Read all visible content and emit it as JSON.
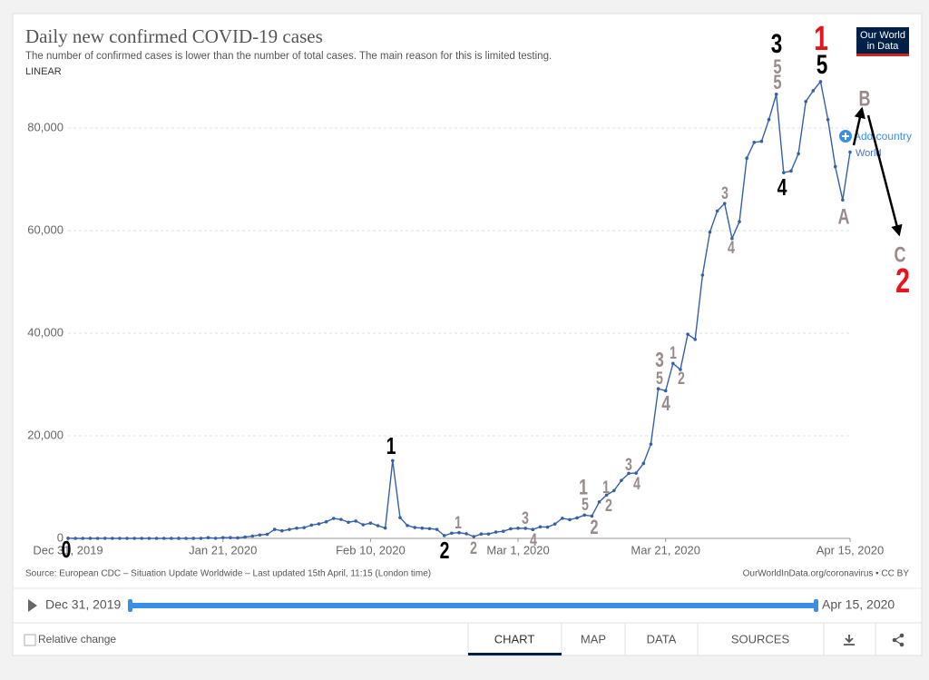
{
  "chart_data": {
    "type": "line",
    "title": "Daily new confirmed COVID-19 cases",
    "subtitle": "The number of confirmed cases is lower than the number of total cases. The main reason for this is limited testing.",
    "scale_label": "LINEAR",
    "log_scale": false,
    "grid": true,
    "xlim": [
      "2019-12-31",
      "2020-04-15"
    ],
    "xticks": [
      {
        "value": "2019-12-31",
        "label": "Dec 31, 2019"
      },
      {
        "value": "2020-01-21",
        "label": "Jan 21, 2020"
      },
      {
        "value": "2020-02-10",
        "label": "Feb 10, 2020"
      },
      {
        "value": "2020-03-01",
        "label": "Mar 1, 2020"
      },
      {
        "value": "2020-03-21",
        "label": "Mar 21, 2020"
      },
      {
        "value": "2020-04-15",
        "label": "Apr 15, 2020"
      }
    ],
    "ylim": [
      0,
      90000
    ],
    "yticks": [
      0,
      {
        "value": 20000,
        "label": "20,000"
      },
      {
        "value": 40000,
        "label": "40,000"
      },
      {
        "value": 60000,
        "label": "60,000"
      },
      {
        "value": 80000,
        "label": "80,000"
      }
    ],
    "x": [
      "2019-12-31",
      "2020-01-01",
      "2020-01-02",
      "2020-01-03",
      "2020-01-04",
      "2020-01-05",
      "2020-01-06",
      "2020-01-07",
      "2020-01-08",
      "2020-01-09",
      "2020-01-10",
      "2020-01-11",
      "2020-01-12",
      "2020-01-13",
      "2020-01-14",
      "2020-01-15",
      "2020-01-16",
      "2020-01-17",
      "2020-01-18",
      "2020-01-19",
      "2020-01-20",
      "2020-01-21",
      "2020-01-22",
      "2020-01-23",
      "2020-01-24",
      "2020-01-25",
      "2020-01-26",
      "2020-01-27",
      "2020-01-28",
      "2020-01-29",
      "2020-01-30",
      "2020-01-31",
      "2020-02-01",
      "2020-02-02",
      "2020-02-03",
      "2020-02-04",
      "2020-02-05",
      "2020-02-06",
      "2020-02-07",
      "2020-02-08",
      "2020-02-09",
      "2020-02-10",
      "2020-02-11",
      "2020-02-12",
      "2020-02-13",
      "2020-02-14",
      "2020-02-15",
      "2020-02-16",
      "2020-02-17",
      "2020-02-18",
      "2020-02-19",
      "2020-02-20",
      "2020-02-21",
      "2020-02-22",
      "2020-02-23",
      "2020-02-24",
      "2020-02-25",
      "2020-02-26",
      "2020-02-27",
      "2020-02-28",
      "2020-02-29",
      "2020-03-01",
      "2020-03-02",
      "2020-03-03",
      "2020-03-04",
      "2020-03-05",
      "2020-03-06",
      "2020-03-07",
      "2020-03-08",
      "2020-03-09",
      "2020-03-10",
      "2020-03-11",
      "2020-03-12",
      "2020-03-13",
      "2020-03-14",
      "2020-03-15",
      "2020-03-16",
      "2020-03-17",
      "2020-03-18",
      "2020-03-19",
      "2020-03-20",
      "2020-03-21",
      "2020-03-22",
      "2020-03-23",
      "2020-03-24",
      "2020-03-25",
      "2020-03-26",
      "2020-03-27",
      "2020-03-28",
      "2020-03-29",
      "2020-03-30",
      "2020-03-31",
      "2020-04-01",
      "2020-04-02",
      "2020-04-03",
      "2020-04-04",
      "2020-04-05",
      "2020-04-06",
      "2020-04-07",
      "2020-04-08",
      "2020-04-09",
      "2020-04-10",
      "2020-04-11",
      "2020-04-12",
      "2020-04-13",
      "2020-04-14",
      "2020-04-15"
    ],
    "series": [
      {
        "name": "World",
        "color": "#3360a9",
        "values": [
          27,
          0,
          0,
          17,
          0,
          15,
          0,
          0,
          0,
          0,
          1,
          0,
          0,
          1,
          0,
          4,
          0,
          4,
          17,
          136,
          19,
          151,
          140,
          97,
          259,
          441,
          665,
          787,
          1753,
          1466,
          1740,
          1981,
          2099,
          2589,
          2825,
          3235,
          3884,
          3694,
          3143,
          3385,
          2652,
          2984,
          2473,
          2022,
          15151,
          4050,
          2502,
          2121,
          1995,
          1904,
          1745,
          535,
          1009,
          1115,
          904,
          346,
          845,
          862,
          1225,
          1382,
          1861,
          1985,
          1952,
          1734,
          2246,
          2192,
          2806,
          3918,
          3646,
          3997,
          4551,
          4352,
          7094,
          8453,
          9306,
          11297,
          12660,
          12728,
          14606,
          18374,
          29167,
          28771,
          34105,
          32913,
          39796,
          38788,
          51317,
          59702,
          63826,
          65277,
          58453,
          61734,
          74121,
          77195,
          77400,
          81648,
          86578,
          71303,
          71622,
          74987,
          85178,
          87269,
          89047,
          81637,
          72458,
          65963,
          75308
        ]
      }
    ],
    "annotations": [
      {
        "text": "0",
        "color": "#000000"
      },
      {
        "text": "1",
        "color": "#000000"
      },
      {
        "text": "2",
        "color": "#000000"
      },
      {
        "text": "1",
        "color": "#9a8a8a"
      },
      {
        "text": "2",
        "color": "#9a8a8a"
      },
      {
        "text": "3",
        "color": "#9a8a8a"
      },
      {
        "text": "4",
        "color": "#9a8a8a"
      },
      {
        "text": "1",
        "color": "#9a8a8a"
      },
      {
        "text": "5",
        "color": "#9a8a8a"
      },
      {
        "text": "2",
        "color": "#9a8a8a"
      },
      {
        "text": "1",
        "color": "#9a8a8a"
      },
      {
        "text": "2",
        "color": "#9a8a8a"
      },
      {
        "text": "3",
        "color": "#9a8a8a"
      },
      {
        "text": "4",
        "color": "#9a8a8a"
      },
      {
        "text": "3",
        "color": "#9a8a8a"
      },
      {
        "text": "5",
        "color": "#9a8a8a"
      },
      {
        "text": "4",
        "color": "#9a8a8a"
      },
      {
        "text": "1",
        "color": "#9a8a8a"
      },
      {
        "text": "2",
        "color": "#9a8a8a"
      },
      {
        "text": "3",
        "color": "#9a8a8a"
      },
      {
        "text": "4",
        "color": "#9a8a8a"
      },
      {
        "text": "3",
        "color": "#000000"
      },
      {
        "text": "5",
        "color": "#9a8a8a"
      },
      {
        "text": "5",
        "color": "#9a8a8a"
      },
      {
        "text": "4",
        "color": "#000000"
      },
      {
        "text": "1",
        "color": "#e8131b"
      },
      {
        "text": "5",
        "color": "#000000"
      },
      {
        "text": "B",
        "color": "#9a8a8a"
      },
      {
        "text": "A",
        "color": "#9a8a8a"
      },
      {
        "text": "C",
        "color": "#9a8a8a"
      },
      {
        "text": "2",
        "color": "#e8131b"
      }
    ]
  },
  "ui": {
    "logo": [
      "Our World",
      "in Data"
    ],
    "add_country": "Add country",
    "source": "Source: European CDC – Situation Update Worldwide – Last updated 15th April, 11:15 (London time)",
    "credit": "OurWorldInData.org/coronavirus • CC BY",
    "timeline_start": "Dec 31, 2019",
    "timeline_end": "Apr 15, 2020",
    "relative_change": "Relative change",
    "tabs": [
      "CHART",
      "MAP",
      "DATA",
      "SOURCES"
    ]
  }
}
